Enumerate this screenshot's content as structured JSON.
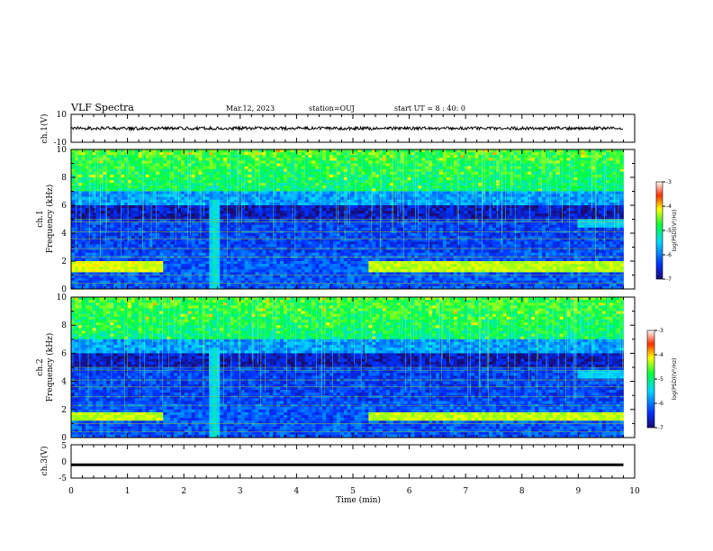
{
  "header": {
    "title": "VLF Spectra",
    "date": "Mar.12, 2023",
    "station": "station=OUJ",
    "start": "start UT =  8 : 40: 0"
  },
  "chart_data": {
    "type": "heatmap",
    "x": {
      "label": "Time (min)",
      "range": [
        0,
        10
      ],
      "ticks": [
        "0",
        "1",
        "2",
        "3",
        "4",
        "5",
        "6",
        "7",
        "8",
        "9",
        "10"
      ]
    },
    "colorbar": {
      "label": "log(PSD)(V²/Hz)",
      "range": [
        -7,
        -3
      ],
      "ticks": [
        "-3",
        "-4",
        "-5",
        "-6",
        "-7"
      ],
      "colors": [
        "#1a0a6e",
        "#0030ff",
        "#00d8ff",
        "#00ff40",
        "#ffff00",
        "#ff3000",
        "#ffffff"
      ]
    },
    "panels": [
      {
        "name": "ch.1(V)",
        "kind": "waveform",
        "ylabel": "ch.1(V)",
        "ylim": [
          -10,
          10
        ],
        "yticks": [
          "10",
          "-10"
        ],
        "level": 0
      },
      {
        "name": "ch.1",
        "kind": "spectrogram",
        "ylabel": "ch.1 Frequency (kHz)",
        "ylim": [
          0,
          10
        ],
        "yticks": [
          "0",
          "2",
          "4",
          "6",
          "8",
          "10"
        ],
        "data_end_min": 9.8,
        "bands": [
          {
            "freq_khz": 1.6,
            "t_start": 0,
            "t_end": 1.65,
            "level": -4.2
          },
          {
            "freq_khz": 1.6,
            "t_start": 5.3,
            "t_end": 9.8,
            "level": -4.3
          },
          {
            "freq_khz": 4.7,
            "t_start": 9.0,
            "t_end": 9.8,
            "level": -5.5
          }
        ],
        "burst_min": 2.55
      },
      {
        "name": "ch.2",
        "kind": "spectrogram",
        "ylabel": "ch.2 Frequency (kHz)",
        "ylim": [
          0,
          10
        ],
        "yticks": [
          "0",
          "2",
          "4",
          "6",
          "8",
          "10"
        ],
        "data_end_min": 9.8,
        "bands": [
          {
            "freq_khz": 1.5,
            "t_start": 0,
            "t_end": 1.65,
            "level": -4.3
          },
          {
            "freq_khz": 1.5,
            "t_start": 5.3,
            "t_end": 9.8,
            "level": -4.3
          },
          {
            "freq_khz": 4.5,
            "t_start": 9.0,
            "t_end": 9.8,
            "level": -5.5
          }
        ],
        "burst_min": 2.55
      },
      {
        "name": "ch.3(V)",
        "kind": "waveform",
        "ylabel": "ch.3(V)",
        "ylim": [
          -5,
          5
        ],
        "yticks": [
          "5",
          "0",
          "-5"
        ],
        "level": -1
      }
    ]
  }
}
